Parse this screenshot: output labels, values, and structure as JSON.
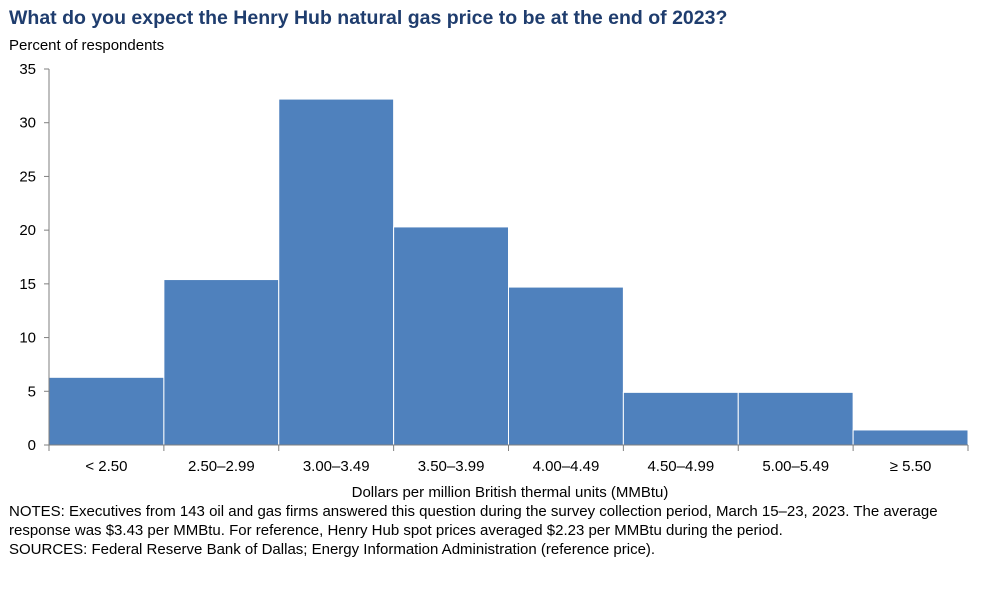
{
  "title": "What do you expect the Henry Hub natural gas price to be at the end of 2023?",
  "notes": "NOTES: Executives from 143 oil and gas firms answered this question during the survey collection period, March 15–23, 2023. The average response was $3.43 per MMBtu. For reference, Henry Hub spot prices averaged $2.23 per MMBtu during the period.",
  "sources": "SOURCES: Federal Reserve Bank of Dallas; Energy Information Administration (reference price).",
  "colors": {
    "bar": "#4f81bd",
    "bar_edge": "#ffffff",
    "title": "#1f3d6e"
  },
  "chart_data": {
    "type": "bar",
    "title": "What do you expect the Henry Hub natural gas price to be at the end of 2023?",
    "ylabel": "Percent of respondents",
    "xlabel": "Dollars per million British thermal units (MMBtu)",
    "categories": [
      "< 2.50",
      "2.50–2.99",
      "3.00–3.49",
      "3.50–3.99",
      "4.00–4.49",
      "4.50–4.99",
      "5.00–5.49",
      "≥ 5.50"
    ],
    "values": [
      6.3,
      15.4,
      32.2,
      20.3,
      14.7,
      4.9,
      4.9,
      1.4
    ],
    "ylim": [
      0,
      35
    ],
    "yticks": [
      0,
      5,
      10,
      15,
      20,
      25,
      30,
      35
    ],
    "grid": false,
    "legend": "none"
  }
}
